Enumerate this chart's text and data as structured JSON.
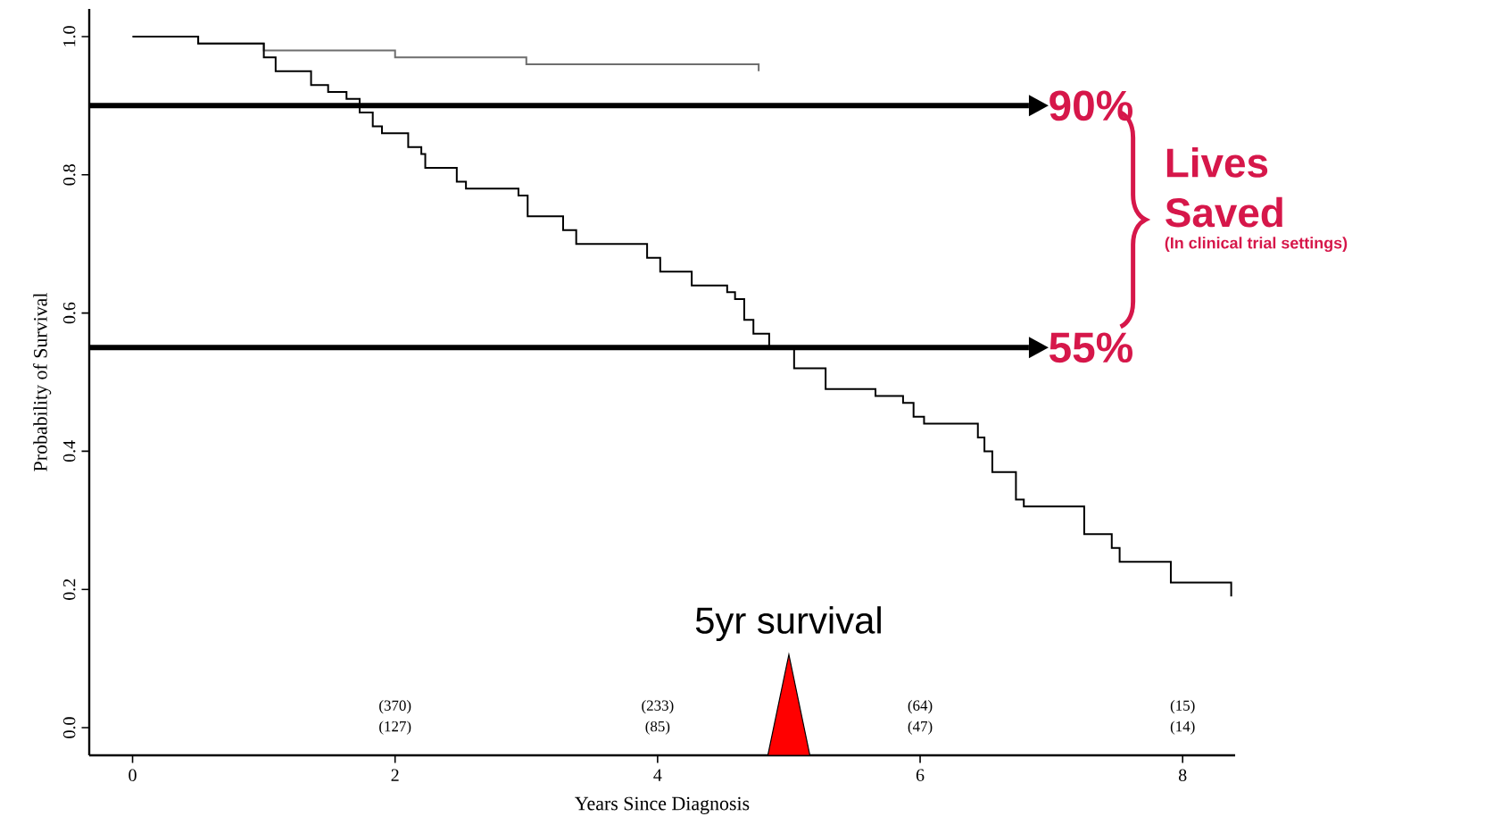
{
  "chart_data": {
    "type": "step",
    "xlabel": "Years Since Diagnosis",
    "ylabel": "Probability of Survival",
    "xlim": [
      -0.33,
      8.4
    ],
    "ylim": [
      -0.04,
      1.04
    ],
    "xticks": [
      0,
      2,
      4,
      6,
      8
    ],
    "yticks": [
      {
        "value": 0,
        "label": "0.0"
      },
      {
        "value": 0.2,
        "label": "0.2"
      },
      {
        "value": 0.4,
        "label": "0.4"
      },
      {
        "value": 0.6,
        "label": "0.6"
      },
      {
        "value": 0.8,
        "label": "0.8"
      },
      {
        "value": 1,
        "label": "1.0"
      }
    ],
    "series": [
      {
        "color": "#6e6e6e",
        "x": [
          0,
          0.5,
          1.0,
          1.5,
          2.0,
          2.5,
          3.0,
          3.5,
          4.0,
          4.77
        ],
        "values": [
          1.0,
          0.99,
          0.98,
          0.98,
          0.97,
          0.97,
          0.96,
          0.96,
          0.96,
          0.95
        ]
      },
      {
        "color": "#000000",
        "x": [
          0,
          0.5,
          1.0,
          1.09,
          1.36,
          1.49,
          1.63,
          1.73,
          1.83,
          1.9,
          2.1,
          2.2,
          2.23,
          2.47,
          2.54,
          2.94,
          3.01,
          3.28,
          3.38,
          3.92,
          4.02,
          4.26,
          4.53,
          4.59,
          4.66,
          4.73,
          4.85,
          5.04,
          5.28,
          5.66,
          5.87,
          5.95,
          6.03,
          6.44,
          6.49,
          6.55,
          6.73,
          6.79,
          7.25,
          7.46,
          7.52,
          7.91,
          8.37
        ],
        "values": [
          1.0,
          0.99,
          0.97,
          0.95,
          0.93,
          0.92,
          0.91,
          0.89,
          0.87,
          0.86,
          0.84,
          0.83,
          0.81,
          0.79,
          0.78,
          0.77,
          0.74,
          0.72,
          0.7,
          0.68,
          0.66,
          0.64,
          0.63,
          0.62,
          0.59,
          0.57,
          0.55,
          0.52,
          0.49,
          0.48,
          0.47,
          0.45,
          0.44,
          0.42,
          0.4,
          0.37,
          0.33,
          0.32,
          0.28,
          0.26,
          0.24,
          0.21,
          0.19
        ]
      }
    ],
    "ref_lines": [
      {
        "axis": "y",
        "value": 0.9,
        "label": "90%",
        "color": "#000000"
      },
      {
        "axis": "y",
        "value": 0.55,
        "label": "55%",
        "color": "#000000"
      }
    ],
    "annotations": [
      "Lives Saved",
      "(In clinical trial settings)",
      "5yr survival",
      "(370)",
      "(127)",
      "(233)",
      "(85)",
      "(64)",
      "(47)",
      "(15)",
      "(14)"
    ]
  }
}
